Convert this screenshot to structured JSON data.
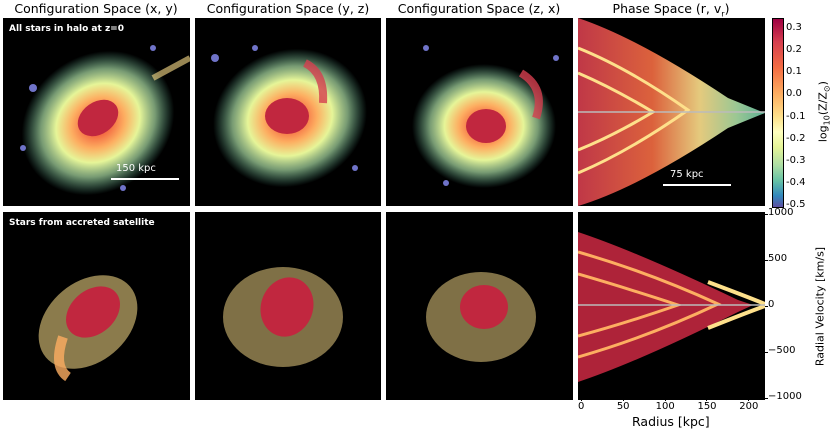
{
  "columns": [
    {
      "title": "Configuration Space (x, y)"
    },
    {
      "title": "Configuration Space (y, z)"
    },
    {
      "title": "Configuration Space (z, x)"
    },
    {
      "title": "Phase Space (r, v_r)"
    }
  ],
  "row_labels": {
    "top": "All stars in halo at z=0",
    "bottom": "Stars from accreted satellite"
  },
  "scalebars": {
    "config": "150 kpc",
    "phase": "75 kpc"
  },
  "colorbar": {
    "label": "log10(Z/Z⊙)",
    "ticks": [
      "0.3",
      "0.2",
      "0.1",
      "0.0",
      "-0.1",
      "-0.2",
      "-0.3",
      "-0.4",
      "-0.5"
    ],
    "range": [
      -0.5,
      0.35
    ],
    "colors": [
      "#9e0142",
      "#d53e4f",
      "#f46d43",
      "#fdae61",
      "#fee08b",
      "#ffffbf",
      "#e6f598",
      "#abdda4",
      "#66c2a5",
      "#3288bd",
      "#5e4fa2"
    ]
  },
  "axes": {
    "xlabel": "Radius [kpc]",
    "xticks": [
      "0",
      "50",
      "100",
      "150",
      "200"
    ],
    "ylabel": "Radial Velocity [km/s]",
    "yticks": [
      "1000",
      "500",
      "0",
      "−500",
      "−1000"
    ]
  }
}
